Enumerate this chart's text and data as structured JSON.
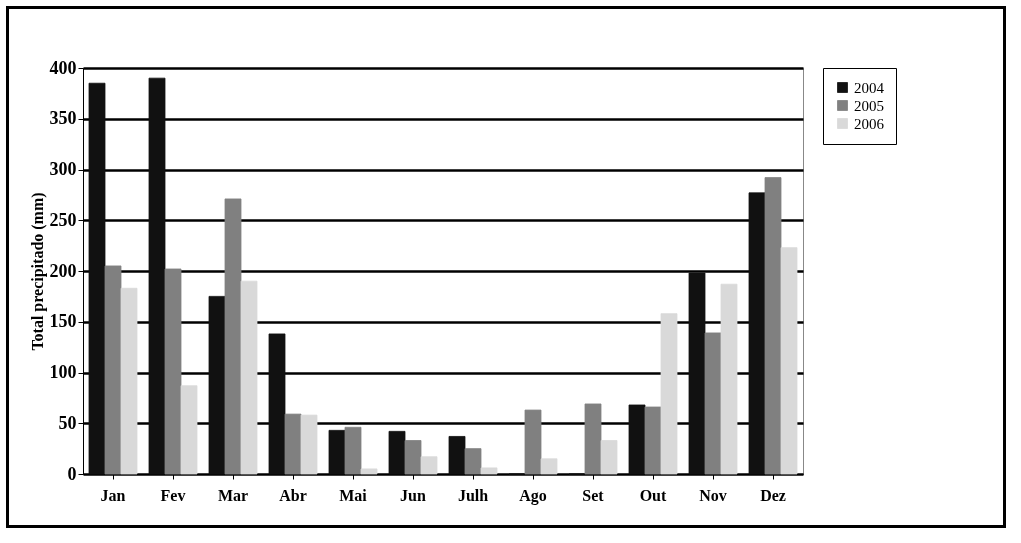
{
  "chart_data": {
    "type": "bar",
    "ylabel": "Total precipitado (mm)",
    "categories": [
      "Jan",
      "Fev",
      "Mar",
      "Abr",
      "Mai",
      "Jun",
      "Julh",
      "Ago",
      "Set",
      "Out",
      "Nov",
      "Dez"
    ],
    "series": [
      {
        "name": "2004",
        "color": "#111111",
        "values": [
          385,
          390,
          175,
          138,
          43,
          42,
          37,
          0,
          0,
          68,
          198,
          277
        ]
      },
      {
        "name": "2005",
        "color": "#808080",
        "values": [
          205,
          202,
          271,
          59,
          46,
          33,
          25,
          63,
          69,
          66,
          139,
          292
        ]
      },
      {
        "name": "2006",
        "color": "#d9d9d9",
        "values": [
          183,
          87,
          190,
          58,
          5,
          17,
          6,
          15,
          33,
          158,
          187,
          223
        ]
      }
    ],
    "ylim": [
      0,
      400
    ],
    "yticks": [
      0,
      50,
      100,
      150,
      200,
      250,
      300,
      350,
      400
    ],
    "grid": "y",
    "legend": "right"
  }
}
